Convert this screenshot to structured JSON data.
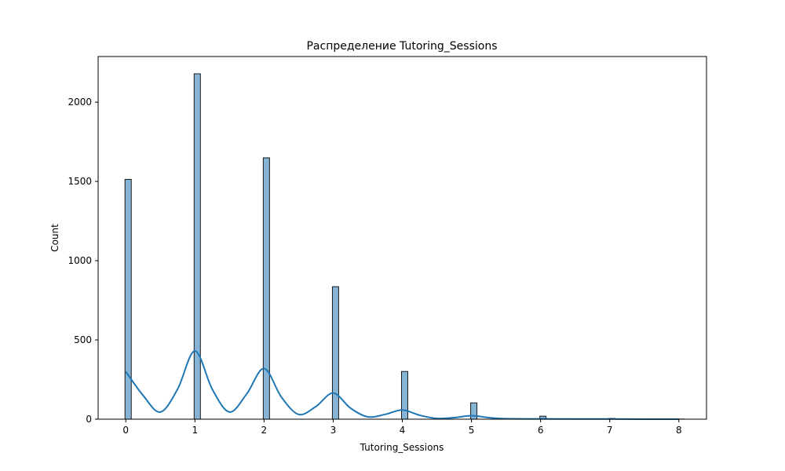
{
  "chart_data": {
    "type": "bar",
    "title": "Распределение Tutoring_Sessions",
    "xlabel": "Tutoring_Sessions",
    "ylabel": "Count",
    "x": [
      0,
      1,
      2,
      3,
      4,
      5,
      6,
      7,
      8
    ],
    "values": [
      1513,
      2179,
      1649,
      836,
      301,
      103,
      19,
      5,
      1
    ],
    "xlim": [
      -0.4,
      8.4
    ],
    "ylim": [
      0,
      2288
    ],
    "xticks": [
      "0",
      "1",
      "2",
      "3",
      "4",
      "5",
      "6",
      "7",
      "8"
    ],
    "yticks": [
      "0",
      "500",
      "1000",
      "1500",
      "2000"
    ],
    "ytick_values": [
      0,
      500,
      1000,
      1500,
      2000
    ],
    "kde": {
      "x": [
        0,
        0.25,
        0.5,
        0.75,
        1,
        1.25,
        1.5,
        1.75,
        2,
        2.25,
        2.5,
        2.75,
        3,
        3.25,
        3.5,
        3.75,
        4,
        4.25,
        4.5,
        4.75,
        5,
        5.25,
        5.5,
        6,
        6.5,
        7,
        7.5,
        8
      ],
      "y": [
        300,
        150,
        45,
        190,
        430,
        190,
        45,
        160,
        320,
        140,
        30,
        80,
        165,
        70,
        15,
        30,
        58,
        25,
        5,
        10,
        22,
        10,
        3,
        2,
        1,
        1,
        0,
        0
      ]
    },
    "grid": false,
    "legend": "none",
    "colors": {
      "bar_fill": "#86b4d6",
      "bar_edge": "#1a1a1a",
      "kde_line": "#1f77b4"
    }
  }
}
